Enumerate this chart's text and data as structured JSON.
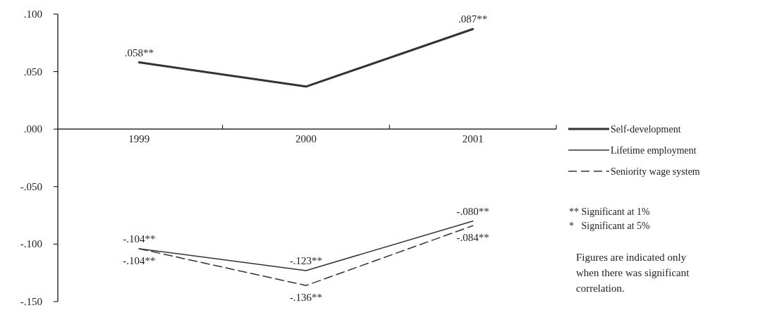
{
  "chart_data": {
    "type": "line",
    "categories": [
      "1999",
      "2000",
      "2001"
    ],
    "series": [
      {
        "name": "Self-development",
        "color": "#333333",
        "line_style": "solid",
        "values": [
          0.058,
          0.037,
          0.087
        ],
        "value_labels": [
          ".058**",
          null,
          ".087**"
        ]
      },
      {
        "name": "Lifetime employment",
        "color": "#333333",
        "line_style": "solid",
        "values": [
          -0.104,
          -0.123,
          -0.08
        ],
        "value_labels": [
          "-.104**",
          "-.123**",
          "-.080**"
        ]
      },
      {
        "name": "Seniority wage system",
        "color": "#333333",
        "line_style": "dashed",
        "values": [
          -0.104,
          -0.136,
          -0.084
        ],
        "value_labels": [
          "-.104**",
          "-.136**",
          "-.084**"
        ]
      }
    ],
    "ylim": [
      -0.15,
      0.1
    ],
    "yticks": [
      {
        "value": -0.15,
        "label": "-.150"
      },
      {
        "value": -0.1,
        "label": "-.100"
      },
      {
        "value": -0.05,
        "label": "-.050"
      },
      {
        "value": 0,
        "label": ".000"
      },
      {
        "value": 0.05,
        "label": ".050"
      },
      {
        "value": 0.1,
        "label": ".100"
      }
    ],
    "grid": false,
    "legend": "right",
    "marker": "none",
    "annotations": [
      "** Significant at 1%",
      "*   Significant at 5%",
      "Figures are indicated only when there was significant correlation."
    ]
  }
}
